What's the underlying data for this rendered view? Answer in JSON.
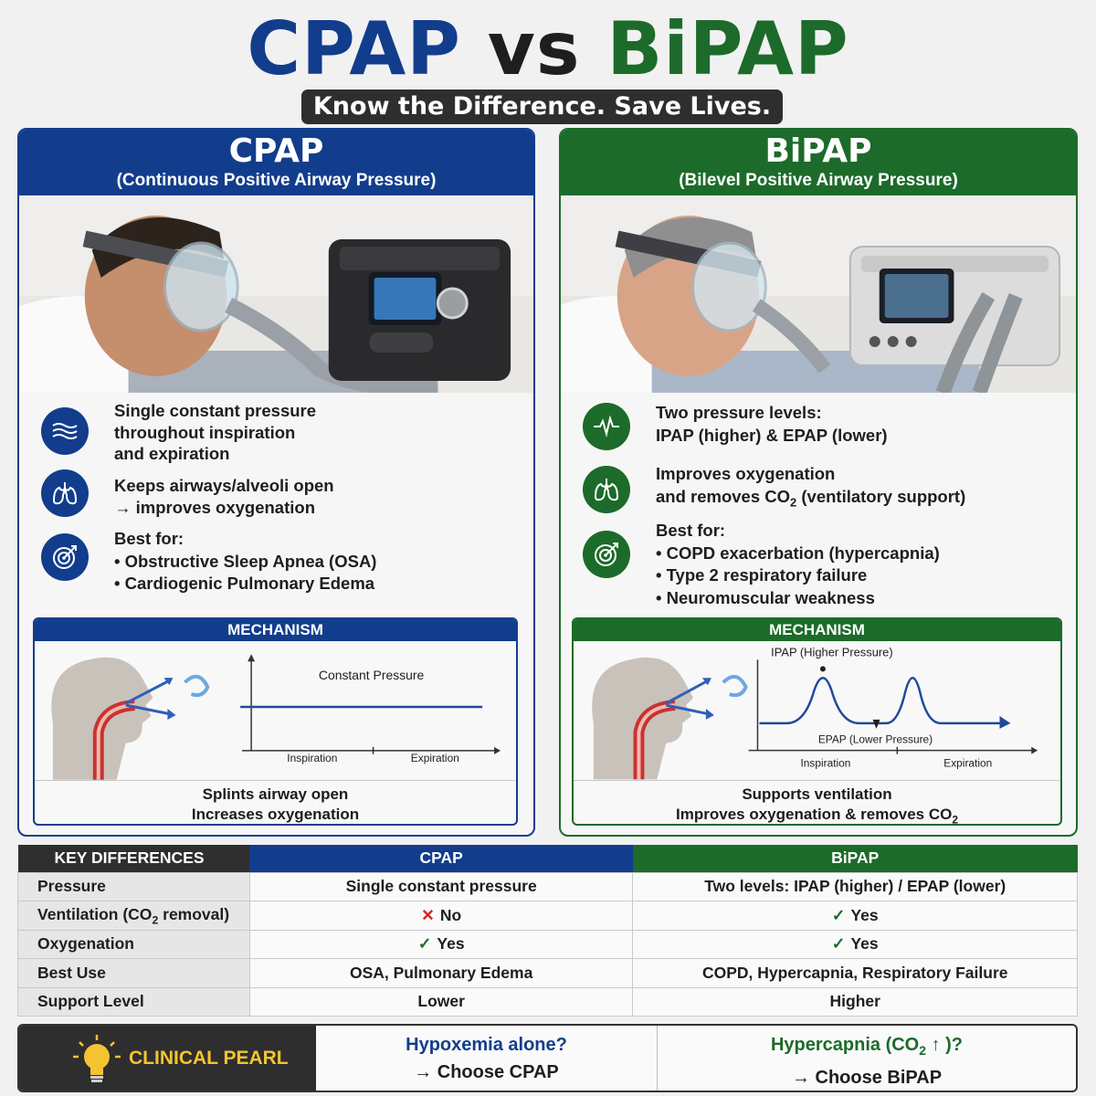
{
  "header": {
    "title_cpap": "CPAP",
    "title_vs": "vs",
    "title_bipap": "BiPAP",
    "tagline": "Know the Difference. Save Lives."
  },
  "cpap": {
    "title": "CPAP",
    "subtitle": "(Continuous Positive Airway Pressure)",
    "features": [
      {
        "icon": "waves-icon",
        "lines": [
          "Single constant pressure",
          "throughout inspiration",
          "and expiration"
        ]
      },
      {
        "icon": "lungs-icon",
        "lines": [
          "Keeps airways/alveoli open",
          "→ improves oxygenation"
        ]
      },
      {
        "icon": "target-icon",
        "lines": [
          "Best for:",
          "• Obstructive Sleep Apnea (OSA)",
          "• Cardiogenic Pulmonary Edema"
        ]
      }
    ],
    "mechanism": {
      "header": "MECHANISM",
      "graph_title": "Constant Pressure",
      "x_label_1": "Inspiration",
      "x_label_2": "Expiration",
      "footer_1": "Splints airway open",
      "footer_2": "Increases oxygenation"
    }
  },
  "bipap": {
    "title": "BiPAP",
    "subtitle": "(Bilevel Positive Airway Pressure)",
    "features": [
      {
        "icon": "waveform-icon",
        "lines": [
          "Two pressure levels:",
          "IPAP (higher) & EPAP (lower)"
        ]
      },
      {
        "icon": "lungs-icon",
        "line1": "Improves oxygenation",
        "line2_pre": "and removes CO",
        "line2_sub": "2",
        "line2_post": " (ventilatory support)"
      },
      {
        "icon": "target-icon",
        "lines": [
          "Best for:",
          "• COPD exacerbation (hypercapnia)",
          "• Type 2 respiratory failure",
          "• Neuromuscular weakness"
        ]
      }
    ],
    "mechanism": {
      "header": "MECHANISM",
      "ipap_label": "IPAP (Higher Pressure)",
      "epap_label": "EPAP (Lower Pressure)",
      "x_label_1": "Inspiration",
      "x_label_2": "Expiration",
      "footer_1": "Supports ventilation",
      "footer_2_pre": "Improves oxygenation & removes CO",
      "footer_2_sub": "2"
    }
  },
  "table": {
    "headers": [
      "KEY DIFFERENCES",
      "CPAP",
      "BiPAP"
    ],
    "rows": [
      {
        "label": "Pressure",
        "cpap": "Single constant pressure",
        "bipap": "Two levels: IPAP (higher) / EPAP (lower)"
      },
      {
        "label_pre": "Ventilation (CO",
        "label_sub": "2",
        "label_post": " removal)",
        "cpap": "No",
        "cpap_mark": "✕",
        "bipap": "Yes",
        "bipap_mark": "✓"
      },
      {
        "label": "Oxygenation",
        "cpap": "Yes",
        "cpap_mark": "✓",
        "bipap": "Yes",
        "bipap_mark": "✓"
      },
      {
        "label": "Best Use",
        "cpap": "OSA, Pulmonary Edema",
        "bipap": "COPD, Hypercapnia, Respiratory Failure"
      },
      {
        "label": "Support Level",
        "cpap": "Lower",
        "bipap": "Higher"
      }
    ]
  },
  "pearl": {
    "label": "CLINICAL PEARL",
    "cpap_question": "Hypoxemia alone?",
    "cpap_answer": "→ Choose CPAP",
    "bipap_question_pre": "Hypercapnia (CO",
    "bipap_question_sub": "2",
    "bipap_question_post": " ↑ )?",
    "bipap_answer": "→ Choose BiPAP"
  },
  "colors": {
    "cpap_blue": "#123d8c",
    "bipap_green": "#1c6b2a",
    "dark": "#2e2e2e",
    "pearl_yellow": "#f4c430",
    "no_red": "#d22a1f"
  }
}
